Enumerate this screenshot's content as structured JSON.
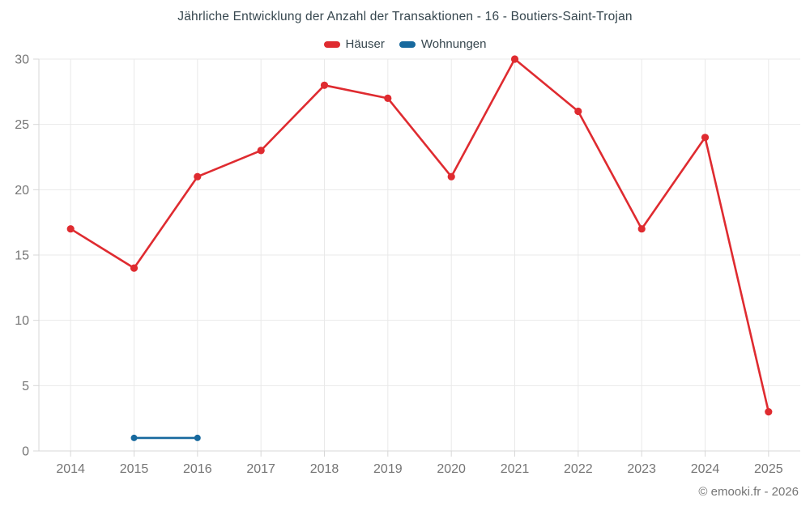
{
  "chart": {
    "title": "Jährliche Entwicklung der Anzahl der Transaktionen - 16 - Boutiers-Saint-Trojan",
    "footer_credit": "© emooki.fr - 2026"
  },
  "legend": {
    "items": [
      {
        "label": "Häuser",
        "color": "#df2b30"
      },
      {
        "label": "Wohnungen",
        "color": "#17699e"
      }
    ]
  },
  "chart_data": {
    "type": "line",
    "title": "Jährliche Entwicklung der Anzahl der Transaktionen - 16 - Boutiers-Saint-Trojan",
    "categories": [
      "2014",
      "2015",
      "2016",
      "2017",
      "2018",
      "2019",
      "2020",
      "2021",
      "2022",
      "2023",
      "2024",
      "2025"
    ],
    "series": [
      {
        "name": "Häuser",
        "color": "#df2b30",
        "values": [
          17,
          14,
          21,
          23,
          28,
          27,
          21,
          30,
          26,
          17,
          24,
          3
        ]
      },
      {
        "name": "Wohnungen",
        "color": "#17699e",
        "values": [
          null,
          1,
          1,
          null,
          null,
          null,
          null,
          null,
          null,
          null,
          null,
          null
        ]
      }
    ],
    "xlabel": "",
    "ylabel": "",
    "ylim": [
      0,
      30
    ],
    "yticks": [
      0,
      5,
      10,
      15,
      20,
      25,
      30
    ],
    "grid": true,
    "legend_position": "top",
    "colors": {
      "grid": "#e9e9e9",
      "axis": "#d7d7d7",
      "tick_label": "#757575",
      "title_text": "#37474f"
    }
  }
}
